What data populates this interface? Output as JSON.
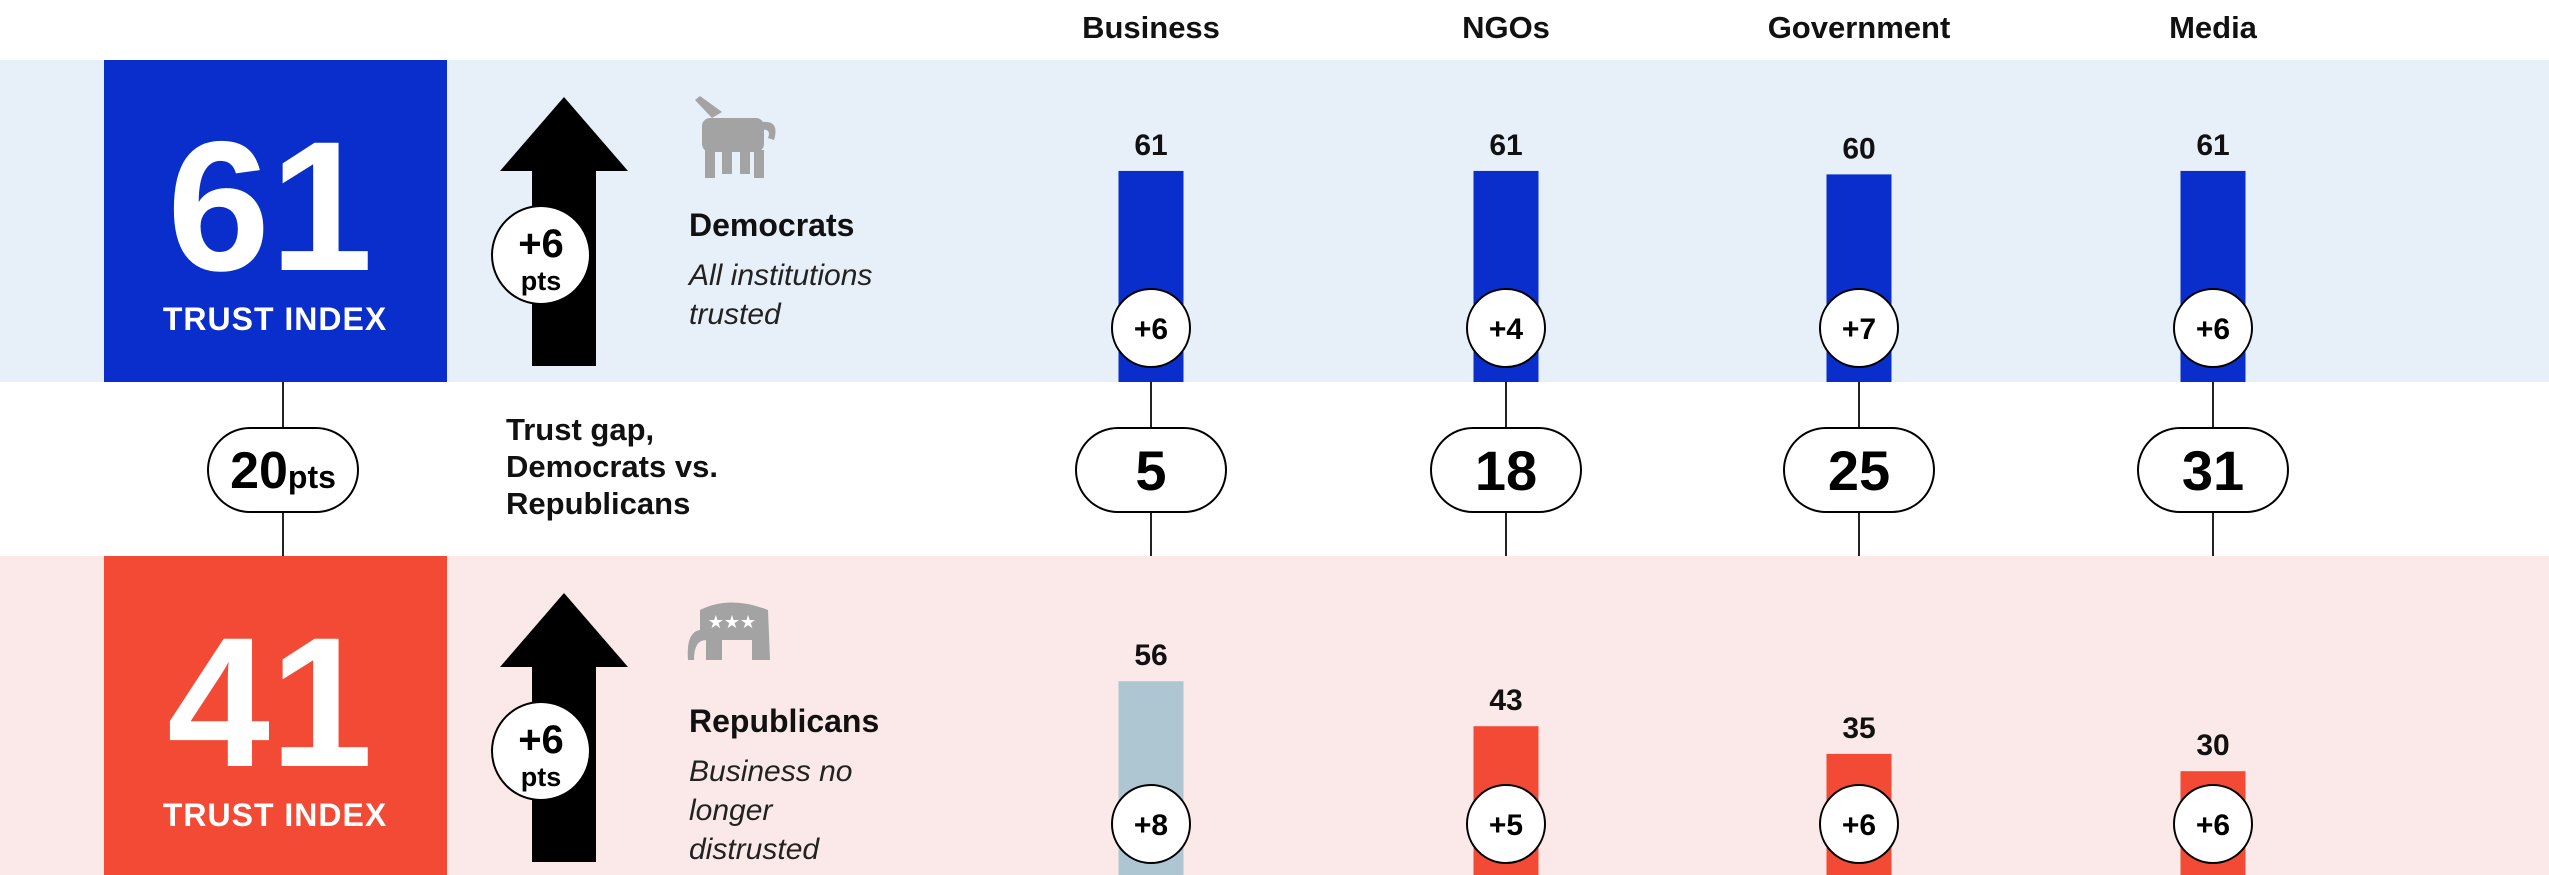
{
  "chart_data": {
    "type": "bar",
    "categories": [
      "Business",
      "NGOs",
      "Government",
      "Media"
    ],
    "series": [
      {
        "name": "Democrats",
        "colors": [
          "#0a2ecb",
          "#0a2ecb",
          "#0a2ecb",
          "#0a2ecb"
        ],
        "values": [
          61,
          61,
          60,
          61
        ],
        "changes": [
          "+6",
          "+4",
          "+7",
          "+6"
        ],
        "note": "All institutions trusted",
        "index": 61,
        "index_label": "TRUST INDEX",
        "index_change": "+6",
        "index_unit": "pts",
        "box_color": "#0a2ecb"
      },
      {
        "name": "Republicans",
        "colors": [
          "#adc6d1",
          "#f24a35",
          "#f24a35",
          "#f24a35"
        ],
        "values": [
          56,
          43,
          35,
          30
        ],
        "changes": [
          "+8",
          "+5",
          "+6",
          "+6"
        ],
        "note": "Business no longer distrusted",
        "index": 41,
        "index_label": "TRUST INDEX",
        "index_change": "+6",
        "index_unit": "pts",
        "box_color": "#f24a35"
      }
    ],
    "gap": {
      "label_lines": [
        "Trust gap,",
        "Democrats vs.",
        "Republicans"
      ],
      "overall": 20,
      "unit": "pts",
      "values": [
        5,
        18,
        25,
        31
      ]
    }
  }
}
